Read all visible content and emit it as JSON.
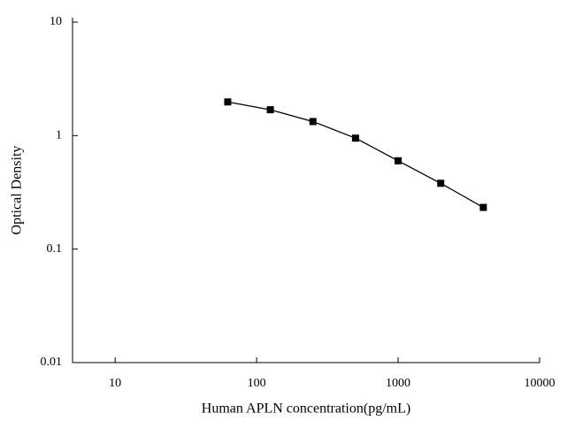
{
  "chart_data": {
    "type": "line",
    "x_label": "Human APLN concentration(pg/mL)",
    "y_label": "Optical Density",
    "x": [
      62.5,
      125,
      250,
      500,
      1000,
      2000,
      4000
    ],
    "series": [
      {
        "color": "#000000",
        "values": [
          1.98,
          1.69,
          1.33,
          0.95,
          0.6,
          0.38,
          0.233
        ]
      }
    ],
    "xlim": [
      5,
      10000
    ],
    "xticks": [
      10,
      100,
      1000,
      10000
    ],
    "ylim": [
      0.01,
      10
    ],
    "yticks": [
      0.01,
      0.1,
      1,
      10
    ],
    "xscale": "log",
    "yscale": "log",
    "grid": false
  }
}
